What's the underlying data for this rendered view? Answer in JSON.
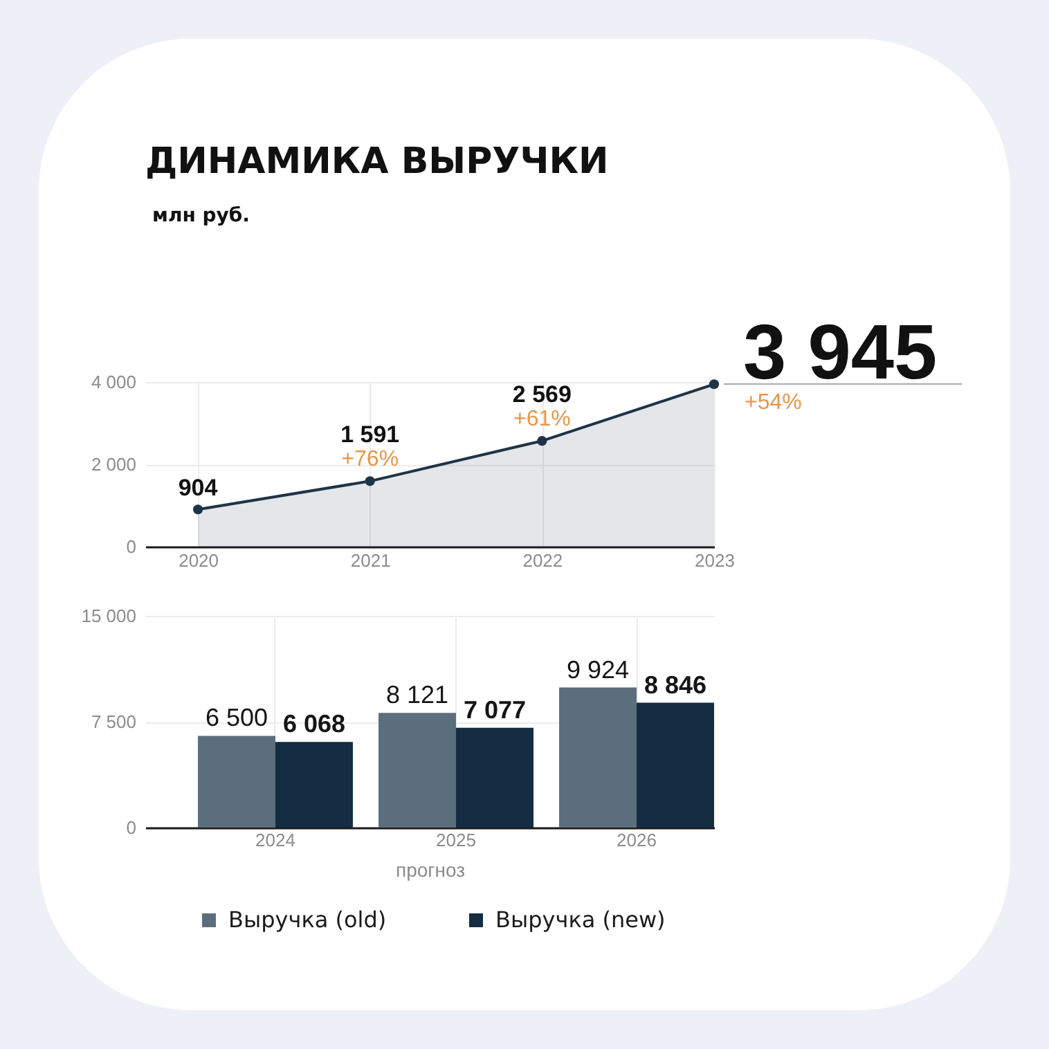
{
  "chart_data": [
    {
      "type": "area",
      "title": "ДИНАМИКА ВЫРУЧКИ",
      "subtitle": "млн руб.",
      "categories": [
        "2020",
        "2021",
        "2022",
        "2023"
      ],
      "series": [
        {
          "color": "#1e3448",
          "values": [
            904,
            1591,
            2569,
            3945
          ],
          "value_labels": [
            "904",
            "1 591",
            "2 569",
            "3 945"
          ]
        }
      ],
      "ylim": [
        0,
        4000
      ],
      "yticks": [
        0,
        {
          "value": 2000,
          "label": "2 000"
        },
        {
          "value": 4000,
          "label": "4 000"
        }
      ],
      "grid": true,
      "marker": "circle",
      "annotations": [
        {
          "text": "+76%",
          "x": "2021",
          "y": 1591
        },
        {
          "text": "+61%",
          "x": "2022",
          "y": 2569
        },
        {
          "text": "+54%",
          "x": "2023",
          "y": 3945
        }
      ]
    },
    {
      "type": "bar",
      "categories": [
        "2024",
        "2025",
        "2026"
      ],
      "xlabel": "прогноз",
      "series": [
        {
          "name": "Выручка (old)",
          "color": "#5b6e7b",
          "values": [
            6500,
            8121,
            9924
          ],
          "value_labels": [
            "6 500",
            "8 121",
            "9 924"
          ]
        },
        {
          "name": "Выручка (new)",
          "color": "#142d43",
          "values": [
            6068,
            7077,
            8846
          ],
          "value_labels": [
            "6 068",
            "7 077",
            "8 846"
          ]
        }
      ],
      "ylim": [
        0,
        15000
      ],
      "yticks": [
        0,
        {
          "value": 7500,
          "label": "7 500"
        },
        {
          "value": 15000,
          "label": "15 000"
        }
      ],
      "grid": true,
      "legend": "bottom"
    }
  ]
}
